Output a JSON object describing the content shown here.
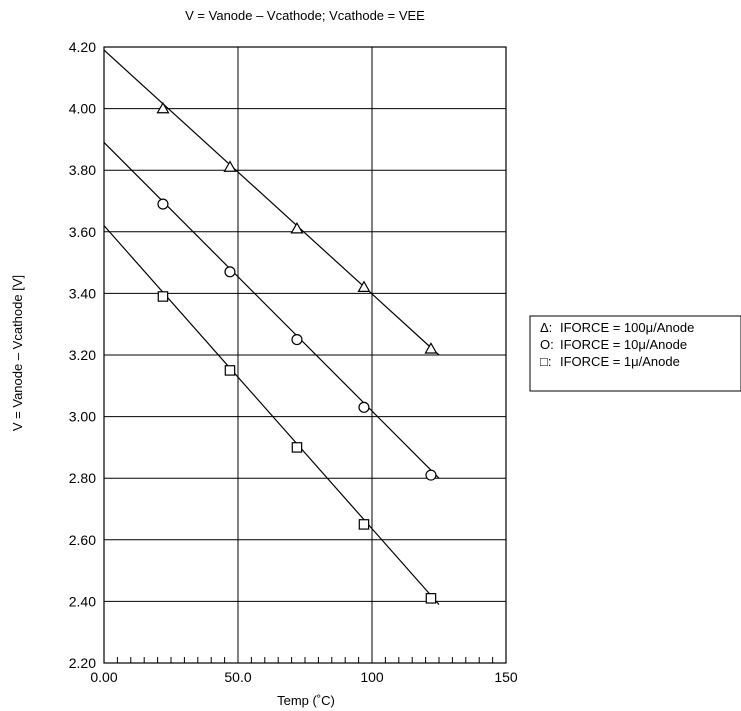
{
  "chart_data": {
    "type": "line",
    "title": "V = Vanode – Vcathode; Vcathode = VEE",
    "xlabel": "Temp (˚C)",
    "ylabel": "V = Vanode – Vcathode [V]",
    "xlim": [
      0,
      150
    ],
    "ylim": [
      2.2,
      4.2
    ],
    "x_ticks": [
      "0.00",
      "50.0",
      "100",
      "150"
    ],
    "y_ticks": [
      "2.20",
      "2.40",
      "2.60",
      "2.80",
      "3.00",
      "3.20",
      "3.40",
      "3.60",
      "3.80",
      "4.00",
      "4.20"
    ],
    "grid": true,
    "legend_position": "right",
    "series": [
      {
        "name": "IFORCE = 100μ/Anode",
        "legend_prefix": "Δ:",
        "marker": "triangle",
        "fit_line": [
          [
            0,
            4.19
          ],
          [
            125,
            3.2
          ]
        ],
        "points": [
          [
            22,
            4.0
          ],
          [
            47,
            3.81
          ],
          [
            72,
            3.61
          ],
          [
            97,
            3.42
          ],
          [
            122,
            3.22
          ]
        ]
      },
      {
        "name": "IFORCE = 10μ/Anode",
        "legend_prefix": "O:",
        "marker": "circle",
        "fit_line": [
          [
            0,
            3.89
          ],
          [
            125,
            2.8
          ]
        ],
        "points": [
          [
            22,
            3.69
          ],
          [
            47,
            3.47
          ],
          [
            72,
            3.25
          ],
          [
            97,
            3.03
          ],
          [
            122,
            2.81
          ]
        ]
      },
      {
        "name": "IFORCE = 1μ/Anode",
        "legend_prefix": "□:",
        "marker": "square",
        "fit_line": [
          [
            0,
            3.62
          ],
          [
            125,
            2.39
          ]
        ],
        "points": [
          [
            22,
            3.39
          ],
          [
            47,
            3.15
          ],
          [
            72,
            2.9
          ],
          [
            97,
            2.65
          ],
          [
            122,
            2.41
          ]
        ]
      }
    ]
  }
}
